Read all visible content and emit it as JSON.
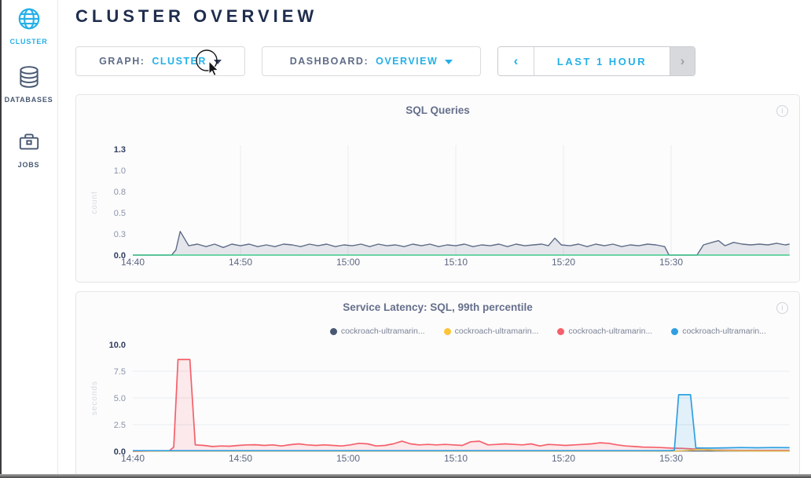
{
  "header": {
    "title": "CLUSTER OVERVIEW"
  },
  "sidebar": {
    "items": [
      {
        "label": "CLUSTER",
        "icon": "globe-icon",
        "active": true
      },
      {
        "label": "DATABASES",
        "icon": "database-icon",
        "active": false
      },
      {
        "label": "JOBS",
        "icon": "briefcase-icon",
        "active": false
      }
    ]
  },
  "controls": {
    "graph": {
      "label": "GRAPH:",
      "value": "CLUSTER"
    },
    "dashboard": {
      "label": "DASHBOARD:",
      "value": "OVERVIEW"
    },
    "timerange": {
      "prev": "‹",
      "label": "LAST 1 HOUR",
      "next": "›",
      "next_disabled": true
    }
  },
  "colors": {
    "accent": "#24b0e8",
    "title": "#1f2d4d",
    "slate": "#5f6c87",
    "green": "#3fca8c",
    "red": "#f4606b",
    "yellow": "#fdc437",
    "navy": "#475872",
    "blue": "#2f9fe1"
  },
  "chart_data": [
    {
      "type": "area",
      "title": "SQL Queries",
      "ylabel": "count",
      "xlabel": "",
      "ylim": [
        0,
        1.25
      ],
      "x_unit": "minutes since 14:40",
      "grid": {
        "vertical": true,
        "horizontal": false
      },
      "xticks": [
        {
          "min": 0,
          "label": "14:40"
        },
        {
          "min": 10,
          "label": "14:50"
        },
        {
          "min": 20,
          "label": "15:00"
        },
        {
          "min": 30,
          "label": "15:10"
        },
        {
          "min": 40,
          "label": "15:20"
        },
        {
          "min": 50,
          "label": "15:30"
        }
      ],
      "yticks": [
        {
          "v": 0,
          "label": "0.0",
          "strong": true
        },
        {
          "v": 0.25,
          "label": "0.3"
        },
        {
          "v": 0.5,
          "label": "0.5"
        },
        {
          "v": 0.75,
          "label": "0.8"
        },
        {
          "v": 1,
          "label": "1.0"
        },
        {
          "v": 1.25,
          "label": "1.3",
          "strong": true
        }
      ],
      "series": [
        {
          "name": "sql-queries",
          "color": "#5f6c87",
          "fill_opacity": 0.15,
          "width": 1.4,
          "x": [
            0,
            3.6,
            4.0,
            4.4,
            5.2,
            6.0,
            6.8,
            7.6,
            8.4,
            9.2,
            10.0,
            10.8,
            11.6,
            12.4,
            13.2,
            14.0,
            14.8,
            15.6,
            16.4,
            17.2,
            18.0,
            18.8,
            19.6,
            20.4,
            21.2,
            22.0,
            22.8,
            23.6,
            24.4,
            25.2,
            26.0,
            26.8,
            27.6,
            28.4,
            29.2,
            30.0,
            30.8,
            31.6,
            32.4,
            33.2,
            34.0,
            34.8,
            35.6,
            36.4,
            37.2,
            38.0,
            38.6,
            39.2,
            39.8,
            40.6,
            41.4,
            42.2,
            43.0,
            43.8,
            44.6,
            45.4,
            46.2,
            47.0,
            47.8,
            48.6,
            49.4,
            49.8,
            52.4,
            53.0,
            53.8,
            54.4,
            55.0,
            55.8,
            56.6,
            57.4,
            58.2,
            59.0,
            59.8,
            60.6,
            61
          ],
          "y": [
            0,
            0,
            0.06,
            0.28,
            0.11,
            0.13,
            0.1,
            0.13,
            0.09,
            0.13,
            0.11,
            0.13,
            0.1,
            0.12,
            0.1,
            0.13,
            0.12,
            0.1,
            0.13,
            0.11,
            0.13,
            0.1,
            0.12,
            0.11,
            0.13,
            0.1,
            0.13,
            0.11,
            0.12,
            0.1,
            0.13,
            0.11,
            0.13,
            0.1,
            0.12,
            0.11,
            0.13,
            0.1,
            0.12,
            0.11,
            0.13,
            0.1,
            0.13,
            0.11,
            0.12,
            0.13,
            0.11,
            0.2,
            0.12,
            0.11,
            0.13,
            0.1,
            0.13,
            0.11,
            0.13,
            0.1,
            0.12,
            0.11,
            0.13,
            0.12,
            0.1,
            0,
            0,
            0.12,
            0.15,
            0.17,
            0.11,
            0.15,
            0.13,
            0.12,
            0.13,
            0.12,
            0.14,
            0.12,
            0.13
          ]
        },
        {
          "name": "baseline",
          "color": "#3fca8c",
          "fill_opacity": 0,
          "width": 1.4,
          "x": [
            0,
            61
          ],
          "y": [
            0,
            0
          ]
        }
      ]
    },
    {
      "type": "area",
      "title": "Service Latency: SQL, 99th percentile",
      "ylabel": "seconds",
      "xlabel": "",
      "ylim": [
        0,
        10
      ],
      "x_unit": "minutes since 14:40",
      "grid": {
        "vertical": false,
        "horizontal": true
      },
      "legend": [
        {
          "label": "cockroach-ultramarin...",
          "color": "#475872"
        },
        {
          "label": "cockroach-ultramarin...",
          "color": "#fdc437"
        },
        {
          "label": "cockroach-ultramarin...",
          "color": "#f4606b"
        },
        {
          "label": "cockroach-ultramarin...",
          "color": "#2f9fe1"
        }
      ],
      "xticks": [
        {
          "min": 0,
          "label": "14:40"
        },
        {
          "min": 10,
          "label": "14:50"
        },
        {
          "min": 20,
          "label": "15:00"
        },
        {
          "min": 30,
          "label": "15:10"
        },
        {
          "min": 40,
          "label": "15:20"
        },
        {
          "min": 50,
          "label": "15:30"
        }
      ],
      "yticks": [
        {
          "v": 0,
          "label": "0.0",
          "strong": true
        },
        {
          "v": 2.5,
          "label": "2.5"
        },
        {
          "v": 5,
          "label": "5.0"
        },
        {
          "v": 7.5,
          "label": "7.5"
        },
        {
          "v": 10,
          "label": "10.0",
          "strong": true
        }
      ],
      "series": [
        {
          "name": "node-navy",
          "color": "#475872",
          "fill_opacity": 0,
          "width": 1.2,
          "x": [
            0,
            61
          ],
          "y": [
            0.03,
            0.03
          ]
        },
        {
          "name": "node-red",
          "color": "#f4606b",
          "fill_opacity": 0.12,
          "width": 1.7,
          "x": [
            0,
            3.4,
            3.8,
            4.2,
            5.3,
            5.8,
            6.6,
            7.4,
            8.2,
            9.0,
            9.8,
            10.6,
            11.4,
            12.2,
            13.0,
            13.8,
            14.6,
            15.4,
            16.2,
            17.0,
            17.8,
            18.6,
            19.4,
            20.2,
            21.0,
            21.8,
            22.6,
            23.4,
            24.2,
            25.0,
            25.8,
            26.6,
            27.4,
            28.2,
            29.0,
            29.8,
            30.6,
            31.4,
            32.2,
            33.0,
            33.8,
            34.6,
            35.4,
            36.2,
            37.0,
            37.8,
            38.6,
            39.4,
            40.2,
            41.0,
            41.8,
            42.6,
            43.4,
            44.2,
            45.0,
            45.8,
            46.6,
            47.4,
            48.2,
            49.0,
            50.0,
            51.0,
            52.0,
            53.0,
            54.0,
            55.0,
            56.5,
            58.0,
            59.5,
            61
          ],
          "y": [
            0,
            0.05,
            0.4,
            8.6,
            8.6,
            0.6,
            0.55,
            0.45,
            0.5,
            0.48,
            0.55,
            0.6,
            0.62,
            0.55,
            0.6,
            0.5,
            0.62,
            0.7,
            0.6,
            0.55,
            0.6,
            0.55,
            0.5,
            0.6,
            0.75,
            0.7,
            0.5,
            0.55,
            0.7,
            0.95,
            0.7,
            0.6,
            0.65,
            0.6,
            0.65,
            0.6,
            0.55,
            0.9,
            0.95,
            0.6,
            0.65,
            0.7,
            0.65,
            0.6,
            0.7,
            0.5,
            0.65,
            0.6,
            0.55,
            0.6,
            0.65,
            0.7,
            0.8,
            0.75,
            0.6,
            0.5,
            0.45,
            0.4,
            0.38,
            0.35,
            0.3,
            0.28,
            0.22,
            0.18,
            0.12,
            0.1,
            0.08,
            0.08,
            0.08,
            0.08
          ]
        },
        {
          "name": "node-yellow",
          "color": "#fdc437",
          "fill_opacity": 0.2,
          "width": 1.4,
          "x": [
            0,
            50.5,
            51.5,
            52.5,
            53.5,
            54.5,
            55.5,
            57,
            59,
            61
          ],
          "y": [
            0.02,
            0.02,
            0.08,
            0.18,
            0.15,
            0.08,
            0.05,
            0.04,
            0.03,
            0.03
          ]
        },
        {
          "name": "node-blue",
          "color": "#2f9fe1",
          "fill_opacity": 0.13,
          "width": 1.7,
          "x": [
            0,
            49.8,
            50.3,
            50.7,
            51.8,
            52.3,
            53.5,
            55,
            56.5,
            58,
            59.5,
            61
          ],
          "y": [
            0.06,
            0.06,
            0.1,
            5.3,
            5.3,
            0.32,
            0.3,
            0.32,
            0.35,
            0.33,
            0.35,
            0.34
          ]
        }
      ]
    }
  ]
}
